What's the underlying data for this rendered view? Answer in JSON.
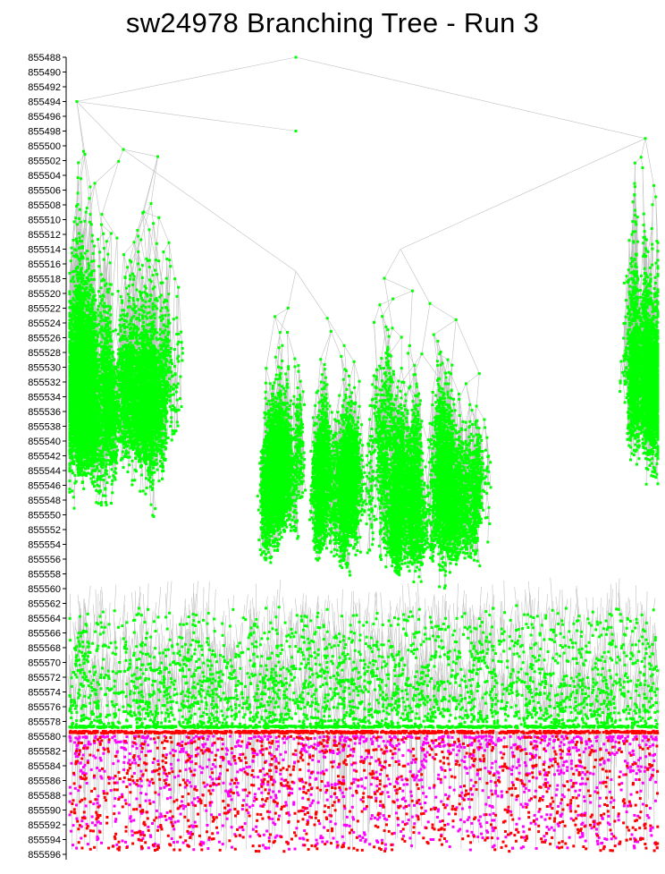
{
  "chart_data": {
    "type": "scatter",
    "title": "sw24978 Branching Tree - Run 3",
    "xlabel": "",
    "ylabel": "",
    "y_axis": "inverted",
    "ylim": [
      855488,
      855596
    ],
    "y_ticks": [
      "855488",
      "855490",
      "855492",
      "855494",
      "855496",
      "855498",
      "855500",
      "855502",
      "855504",
      "855506",
      "855508",
      "855510",
      "855512",
      "855514",
      "855516",
      "855518",
      "855520",
      "855522",
      "855524",
      "855526",
      "855528",
      "855530",
      "855532",
      "855534",
      "855536",
      "855538",
      "855540",
      "855542",
      "855544",
      "855546",
      "855548",
      "855550",
      "855552",
      "855554",
      "855556",
      "855558",
      "855560",
      "855562",
      "855564",
      "855566",
      "855568",
      "855570",
      "855572",
      "855574",
      "855576",
      "855578",
      "855580",
      "855582",
      "855584",
      "855586",
      "855588",
      "855590",
      "855592",
      "855594",
      "855596"
    ],
    "grid": false,
    "legend": "none",
    "colors": {
      "edge": "#c0c0c0",
      "node_upper": "#00ff00",
      "node_lower_a": "#ff0000",
      "node_lower_b": "#ff00ff"
    },
    "root": {
      "y": 855488
    },
    "series": [
      {
        "color": "#00ff00",
        "nodes": [
          {
            "parent_y": 855488,
            "y": 855494
          },
          {
            "parent_y": 855488,
            "y": 855499
          },
          {
            "parent_y": 855494,
            "y": 855498
          },
          {
            "parent_y": 855494,
            "y": 855501
          },
          {
            "parent_y": 855499,
            "y": 855502
          },
          {
            "parent_y": 855501,
            "y": 855507
          },
          {
            "parent_y": 855507,
            "y": 855510
          },
          {
            "parent_y": 855501,
            "y": 855512
          },
          {
            "parent_y": 855507,
            "y": 855512
          },
          {
            "parent_y": 855512,
            "y": 855514
          },
          {
            "parent_y": 855514,
            "y": 855516
          },
          {
            "parent_y": 855510,
            "y": 855518
          },
          {
            "parent_y": 855518,
            "y": 855518
          },
          {
            "parent_y": 855518,
            "y": 855522
          },
          {
            "parent_y": 855518,
            "y": 855525
          },
          {
            "parent_y": 855525,
            "y": 855529
          },
          {
            "parent_y": 855522,
            "y": 855535
          },
          {
            "parent_y": 855535,
            "y": 855538
          },
          {
            "parent_y": 855538,
            "y": 855539
          }
        ]
      },
      {
        "color": "#ff0000",
        "band": [
          855579,
          855596
        ]
      },
      {
        "color": "#ff00ff",
        "band": [
          855580,
          855596
        ]
      }
    ]
  }
}
